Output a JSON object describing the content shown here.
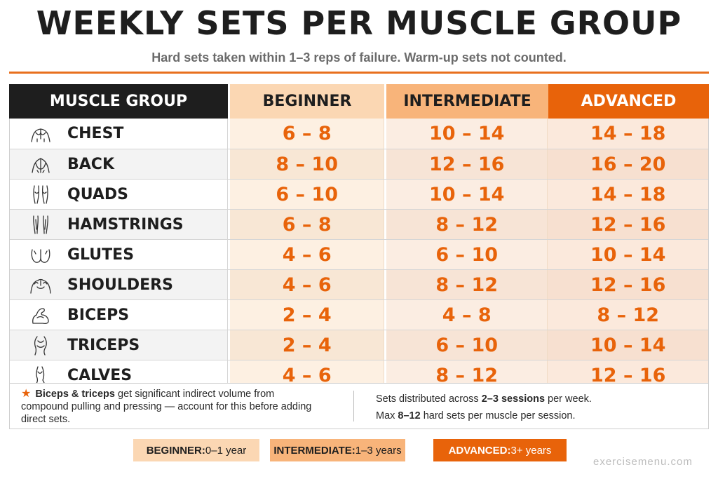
{
  "header": {
    "title": "WEEKLY SETS PER MUSCLE GROUP",
    "subtitle": "Hard sets taken within 1–3 reps of failure. Warm-up sets not counted."
  },
  "table": {
    "columns": [
      "MUSCLE GROUP",
      "BEGINNER",
      "INTERMEDIATE",
      "ADVANCED"
    ],
    "rows": [
      {
        "muscle": "CHEST",
        "icon": "chest-icon",
        "beginner": "6 – 8",
        "intermediate": "10 – 14",
        "advanced": "14 – 18"
      },
      {
        "muscle": "BACK",
        "icon": "back-icon",
        "beginner": "8 – 10",
        "intermediate": "12 – 16",
        "advanced": "16 – 20"
      },
      {
        "muscle": "QUADS",
        "icon": "quads-icon",
        "beginner": "6 – 10",
        "intermediate": "10 – 14",
        "advanced": "14 – 18"
      },
      {
        "muscle": "HAMSTRINGS",
        "icon": "hamstrings-icon",
        "beginner": "6 – 8",
        "intermediate": "8 – 12",
        "advanced": "12 – 16"
      },
      {
        "muscle": "GLUTES",
        "icon": "glutes-icon",
        "beginner": "4 – 6",
        "intermediate": "6 – 10",
        "advanced": "10 – 14"
      },
      {
        "muscle": "SHOULDERS",
        "icon": "shoulders-icon",
        "beginner": "4 – 6",
        "intermediate": "8 – 12",
        "advanced": "12 – 16"
      },
      {
        "muscle": "BICEPS",
        "icon": "biceps-icon",
        "beginner": "2 – 4",
        "intermediate": "4 – 8",
        "advanced": "8 – 12"
      },
      {
        "muscle": "TRICEPS",
        "icon": "triceps-icon",
        "beginner": "2 – 4",
        "intermediate": "6 – 10",
        "advanced": "10 – 14"
      },
      {
        "muscle": "CALVES",
        "icon": "calves-icon",
        "beginner": "4 – 6",
        "intermediate": "8 – 12",
        "advanced": "12 – 16"
      }
    ]
  },
  "notes": {
    "left_bold": "Biceps & triceps",
    "left_text": " get significant indirect volume from compound pulling and pressing — account for this before adding direct sets.",
    "right_line1_pre": "Sets distributed across ",
    "right_line1_bold": "2–3 sessions",
    "right_line1_post": " per week.",
    "right_line2_pre": "Max ",
    "right_line2_bold": "8–12",
    "right_line2_post": " hard sets per muscle per session."
  },
  "legend": {
    "beginner_label": "BEGINNER:",
    "beginner_value": " 0–1 year",
    "intermediate_label": "INTERMEDIATE:",
    "intermediate_value": " 1–3 years",
    "advanced_label": "ADVANCED:",
    "advanced_value": " 3+ years"
  },
  "watermark": "exercisemenu.com",
  "colors": {
    "accent": "#e8630a",
    "beginner": "#fbd7b3",
    "intermediate": "#f8b47a",
    "advanced": "#e8630a",
    "header_dark": "#1e1e1e"
  }
}
